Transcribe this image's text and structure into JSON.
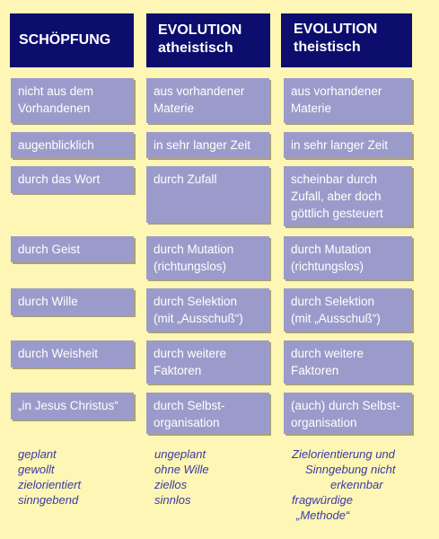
{
  "headers": [
    [
      "SCHÖPFUNG"
    ],
    [
      "EVOLUTION",
      "atheistisch"
    ],
    [
      "EVOLUTION",
      "theistisch"
    ]
  ],
  "rows": [
    [
      [
        "nicht aus dem",
        "Vorhandenen"
      ],
      [
        "aus vorhandener",
        "Materie"
      ],
      [
        "aus vorhandener",
        "Materie"
      ]
    ],
    [
      [
        "augenblicklich"
      ],
      [
        "in sehr langer Zeit"
      ],
      [
        "in sehr langer Zeit"
      ]
    ],
    [
      [
        "durch das Wort"
      ],
      [
        "durch Zufall"
      ],
      [
        "scheinbar durch",
        "Zufall, aber doch",
        "göttlich gesteuert"
      ]
    ],
    [
      [
        "durch Geist"
      ],
      [
        "durch Mutation",
        "(richtungslos)"
      ],
      [
        "durch Mutation",
        "(richtungslos)"
      ]
    ],
    [
      [
        "durch Wille"
      ],
      [
        "durch Selektion",
        "(mit „Ausschuß“)"
      ],
      [
        "durch Selektion",
        "(mit „Ausschuß“)"
      ]
    ],
    [
      [
        "durch Weisheit"
      ],
      [
        "durch weitere",
        "Faktoren"
      ],
      [
        "durch weitere",
        "Faktoren"
      ]
    ],
    [
      [
        "„in Jesus Christus“"
      ],
      [
        "durch Selbst-",
        "organisation"
      ],
      [
        "(auch) durch Selbst-",
        "organisation"
      ]
    ]
  ],
  "footer": [
    [
      "geplant",
      "gewollt",
      "zielorientiert",
      "sinngebend"
    ],
    [
      "ungeplant",
      "ohne Wille",
      "ziellos",
      "sinnlos"
    ],
    [
      "Zielorientierung und",
      "Sinngebung nicht",
      "erkennbar",
      "fragwürdige",
      "„Methode“"
    ]
  ]
}
